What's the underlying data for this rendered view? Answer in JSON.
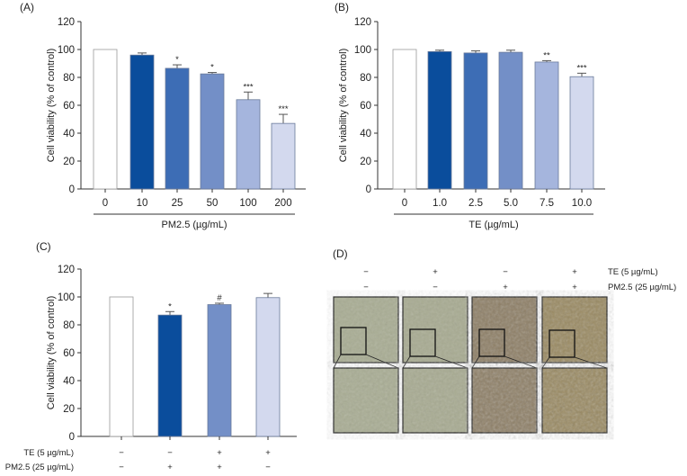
{
  "chart_data": [
    {
      "panel": "(A)",
      "type": "bar",
      "ylabel": "Cell viability (% of control)",
      "xlabel": "PM2.5 (µg/mL)",
      "categories": [
        "0",
        "10",
        "25",
        "50",
        "100",
        "200"
      ],
      "values": [
        100,
        96,
        86.5,
        82.5,
        64,
        47
      ],
      "error": [
        0,
        1.5,
        2.5,
        1,
        5.5,
        6.5
      ],
      "significance": [
        "",
        "",
        "*",
        "*",
        "***",
        "***"
      ],
      "colors": [
        "#ffffff",
        "#0a4d9c",
        "#3d6db5",
        "#738fc7",
        "#a5b5dd",
        "#d3d9ee"
      ],
      "ylim": [
        0,
        120
      ],
      "yticks": [
        0,
        20,
        40,
        60,
        80,
        100,
        120
      ],
      "grid": false
    },
    {
      "panel": "(B)",
      "type": "bar",
      "ylabel": "Cell viability (% of control)",
      "xlabel": "TE (µg/mL)",
      "categories": [
        "0",
        "1.0",
        "2.5",
        "5.0",
        "7.5",
        "10.0"
      ],
      "values": [
        100,
        98.5,
        97.5,
        98,
        91,
        80.5
      ],
      "error": [
        0,
        1,
        1.5,
        1.5,
        1,
        2.5
      ],
      "significance": [
        "",
        "",
        "",
        "",
        "**",
        "***"
      ],
      "colors": [
        "#ffffff",
        "#0a4d9c",
        "#3d6db5",
        "#738fc7",
        "#a5b5dd",
        "#d3d9ee"
      ],
      "ylim": [
        0,
        120
      ],
      "yticks": [
        0,
        20,
        40,
        60,
        80,
        100,
        120
      ],
      "grid": false
    },
    {
      "panel": "(C)",
      "type": "bar",
      "ylabel": "Cell viability (% of control)",
      "row_labels": [
        "TE (5 µg/mL)",
        "PM2.5 (25 µg/mL)"
      ],
      "rows": [
        [
          "−",
          "−",
          "+",
          "+"
        ],
        [
          "−",
          "+",
          "+",
          "−"
        ]
      ],
      "values": [
        100,
        87,
        94.5,
        99.5
      ],
      "error": [
        0,
        2.5,
        1,
        3
      ],
      "significance": [
        "",
        "*",
        "#",
        ""
      ],
      "colors": [
        "#ffffff",
        "#0a4d9c",
        "#738fc7",
        "#d3d9ee"
      ],
      "ylim": [
        0,
        120
      ],
      "yticks": [
        0,
        20,
        40,
        60,
        80,
        100,
        120
      ],
      "grid": false
    }
  ],
  "panel_d": {
    "label": "(D)",
    "row_labels": [
      "TE (5 µg/mL)",
      "PM2.5 (25 µg/mL)"
    ],
    "rows": [
      [
        "−",
        "+",
        "−",
        "+"
      ],
      [
        "−",
        "−",
        "+",
        "+"
      ]
    ],
    "image_tints": [
      "#a9ad94",
      "#a8ab92",
      "#8e7f66",
      "#9a8a62"
    ]
  }
}
